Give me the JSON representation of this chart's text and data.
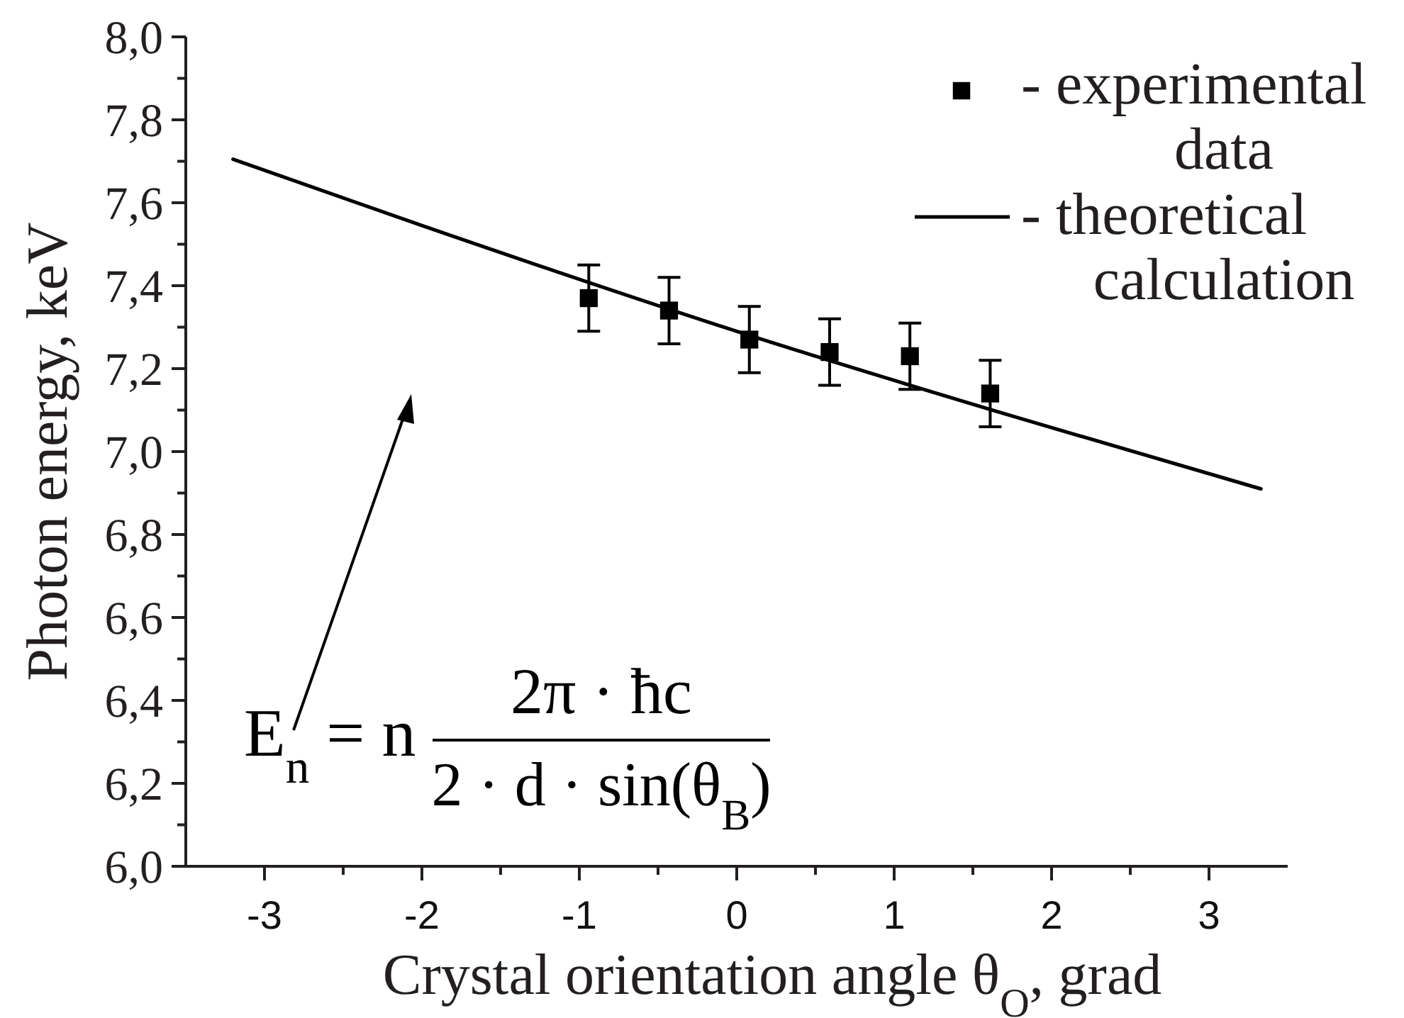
{
  "chart_data": {
    "type": "scatter",
    "xlabel": "Crystal orientation angle θ$_{O}$, grad",
    "ylabel": "Photon energy, keV",
    "xlim": [
      -3.5,
      3.5
    ],
    "ylim": [
      6,
      8
    ],
    "xticks": [
      -3,
      {
        "value": -2.5,
        "label": null
      },
      -2,
      {
        "value": -1.5,
        "label": null
      },
      -1,
      {
        "value": -0.5,
        "label": null
      },
      0,
      {
        "value": 0.5,
        "label": null
      },
      1,
      {
        "value": 1.5,
        "label": null
      },
      2,
      {
        "value": 2.5,
        "label": null
      },
      3
    ],
    "yticks": [
      {
        "value": 6,
        "label": "6,0"
      },
      {
        "value": 6.1,
        "label": null
      },
      {
        "value": 6.2,
        "label": "6,2"
      },
      {
        "value": 6.3,
        "label": null
      },
      {
        "value": 6.4,
        "label": "6,4"
      },
      {
        "value": 6.5,
        "label": null
      },
      {
        "value": 6.6,
        "label": "6,6"
      },
      {
        "value": 6.7,
        "label": null
      },
      {
        "value": 6.8,
        "label": "6,8"
      },
      {
        "value": 6.9,
        "label": null
      },
      {
        "value": 7,
        "label": "7,0"
      },
      {
        "value": 7.1,
        "label": null
      },
      {
        "value": 7.2,
        "label": "7,2"
      },
      {
        "value": 7.3,
        "label": null
      },
      {
        "value": 7.4,
        "label": "7,4"
      },
      {
        "value": 7.5,
        "label": null
      },
      {
        "value": 7.6,
        "label": "7,6"
      },
      {
        "value": 7.7,
        "label": null
      },
      {
        "value": 7.8,
        "label": "7,8"
      },
      {
        "value": 7.9,
        "label": null
      },
      {
        "value": 8,
        "label": "8,0"
      }
    ],
    "legend": "top right",
    "annotations": [
      "E$_{n}$ = n",
      "2π · ħc",
      "2 · d · sin(θ$_{B}$)"
    ],
    "series": [
      {
        "name": "- experimental data",
        "color": "#000000",
        "marker": "square",
        "x": [
          -0.94,
          -0.43,
          0.08,
          0.59,
          1.1,
          1.61
        ],
        "values": [
          7.37,
          7.34,
          7.27,
          7.24,
          7.23,
          7.14
        ],
        "errors": [
          0.08,
          0.08,
          0.08,
          0.08,
          0.08,
          0.08
        ]
      },
      {
        "name": "- theoretical calculation",
        "type": "line",
        "color": "#000000",
        "marker": "none",
        "line_style": "solid",
        "x": [
          -3.2,
          -2,
          0,
          1.8,
          3.33
        ],
        "values": [
          7.705,
          7.545,
          7.29,
          7.08,
          6.91
        ]
      }
    ]
  }
}
